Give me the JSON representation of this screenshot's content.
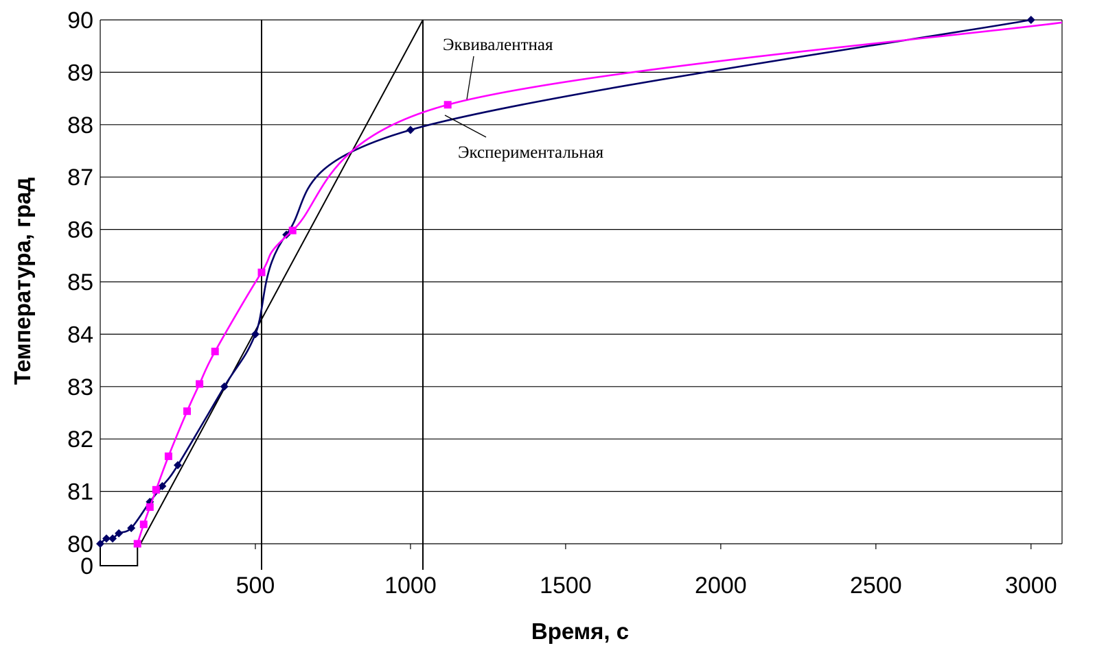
{
  "chart_data": {
    "type": "line",
    "xlabel": "Время, с",
    "ylabel": "Температура, град",
    "xlim": [
      0,
      3100
    ],
    "ylim": [
      80,
      90
    ],
    "x_ticks": [
      500,
      1000,
      1500,
      2000,
      2500,
      3000
    ],
    "x_tick_labels": [
      "500",
      "1000",
      "1500",
      "2000",
      "2500",
      "3000"
    ],
    "y_ticks": [
      80,
      81,
      82,
      83,
      84,
      85,
      86,
      87,
      88,
      89,
      90
    ],
    "y_tick_labels": [
      "80",
      "81",
      "82",
      "83",
      "84",
      "85",
      "86",
      "87",
      "88",
      "89",
      "90"
    ],
    "origin_label": "0",
    "grid": "horizontal",
    "series": [
      {
        "name": "Экспериментальная",
        "color": "#000066",
        "marker": "diamond",
        "points": [
          [
            0,
            80.0
          ],
          [
            20,
            80.1
          ],
          [
            40,
            80.1
          ],
          [
            60,
            80.2
          ],
          [
            100,
            80.3
          ],
          [
            160,
            80.8
          ],
          [
            200,
            81.1
          ],
          [
            250,
            81.5
          ],
          [
            400,
            83.0
          ],
          [
            500,
            84.0
          ],
          [
            600,
            85.9
          ],
          [
            1000,
            87.9
          ],
          [
            3000,
            90.0
          ]
        ]
      },
      {
        "name": "Эквивалентная",
        "color": "#ff00ff",
        "marker": "square",
        "points": [
          [
            120,
            80.0
          ],
          [
            140,
            80.37
          ],
          [
            160,
            80.7
          ],
          [
            180,
            81.03
          ],
          [
            220,
            81.67
          ],
          [
            280,
            82.53
          ],
          [
            320,
            83.05
          ],
          [
            370,
            83.67
          ],
          [
            520,
            85.18
          ],
          [
            620,
            85.98
          ],
          [
            1120,
            88.38
          ],
          [
            3100,
            89.95
          ]
        ]
      }
    ],
    "construction": {
      "tangent_line": [
        [
          130,
          80
        ],
        [
          1040,
          90
        ]
      ],
      "vertical_lines_x": [
        520,
        1040
      ],
      "bracket_from_origin_x": 120
    },
    "annotations": [
      {
        "text": "Эквивалентная",
        "series": "Эквивалентная",
        "at_x": 1190
      },
      {
        "text": "Экспериментальная",
        "series": "Экспериментальная",
        "at_x": 1230
      }
    ]
  }
}
